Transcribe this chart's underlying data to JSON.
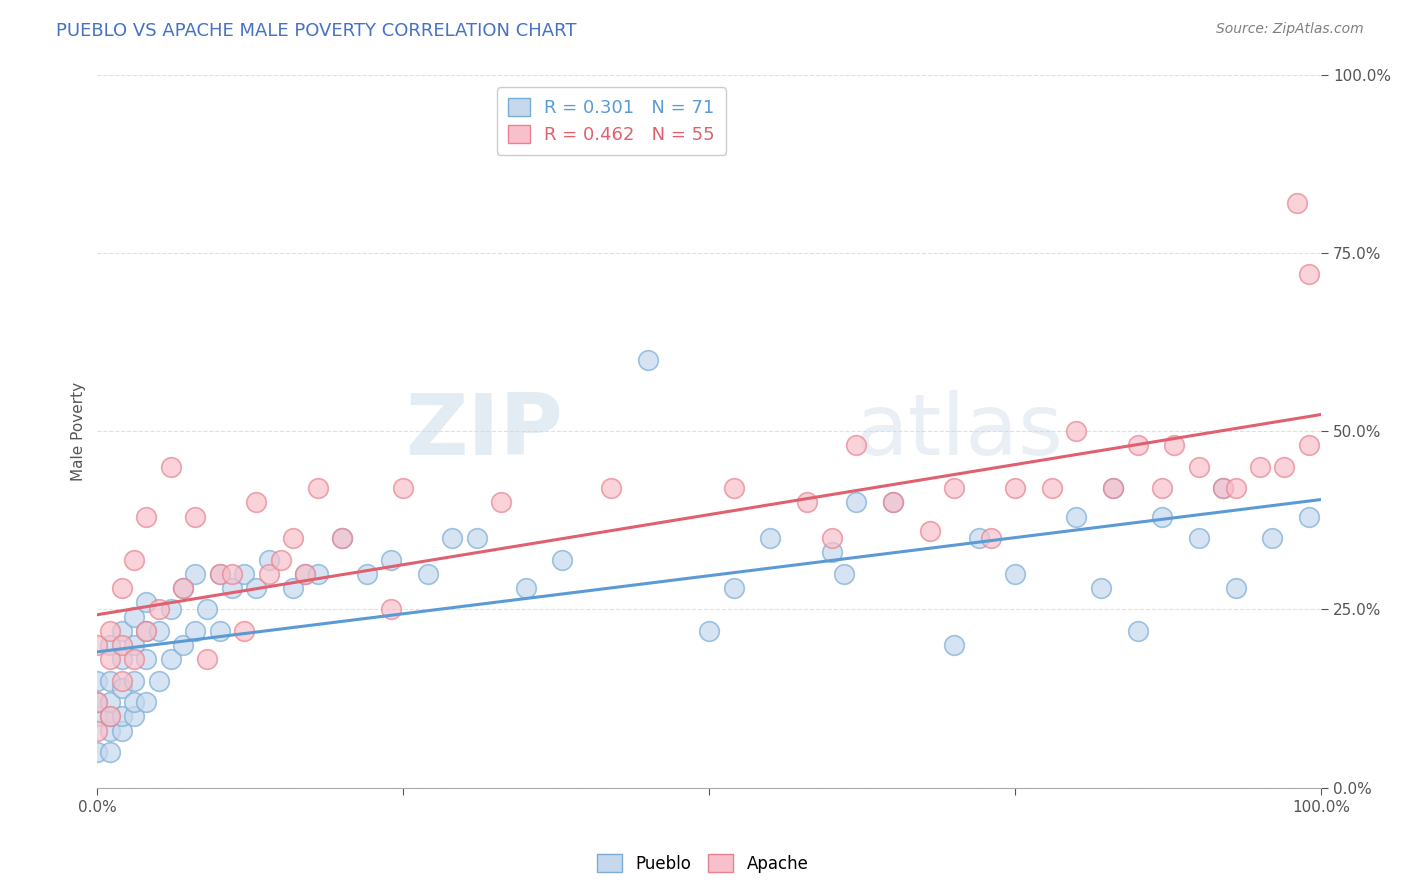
{
  "title": "PUEBLO VS APACHE MALE POVERTY CORRELATION CHART",
  "source": "Source: ZipAtlas.com",
  "ylabel": "Male Poverty",
  "pueblo_R": 0.301,
  "pueblo_N": 71,
  "apache_R": 0.462,
  "apache_N": 55,
  "pueblo_color": "#c5d8ee",
  "apache_color": "#f7c0cb",
  "pueblo_edge_color": "#7aadd4",
  "apache_edge_color": "#e8828e",
  "pueblo_line_color": "#5b9bd5",
  "apache_line_color": "#e06070",
  "watermark_color": "#d0dce8",
  "background_color": "#ffffff",
  "xlim": [
    0,
    1
  ],
  "ylim": [
    0,
    1
  ],
  "title_color": "#4472c4",
  "source_color": "#808080",
  "grid_color": "#dddddd",
  "legend_text_pueblo": "#5b9bd5",
  "legend_text_apache": "#e06070",
  "pueblo_x": [
    0.0,
    0.0,
    0.0,
    0.0,
    0.01,
    0.01,
    0.01,
    0.01,
    0.01,
    0.01,
    0.02,
    0.02,
    0.02,
    0.02,
    0.02,
    0.03,
    0.03,
    0.03,
    0.03,
    0.03,
    0.04,
    0.04,
    0.04,
    0.04,
    0.05,
    0.05,
    0.06,
    0.06,
    0.07,
    0.07,
    0.08,
    0.08,
    0.09,
    0.1,
    0.1,
    0.11,
    0.12,
    0.13,
    0.14,
    0.16,
    0.17,
    0.18,
    0.2,
    0.22,
    0.24,
    0.27,
    0.29,
    0.31,
    0.35,
    0.38,
    0.45,
    0.5,
    0.52,
    0.55,
    0.6,
    0.61,
    0.62,
    0.65,
    0.7,
    0.72,
    0.75,
    0.8,
    0.82,
    0.83,
    0.85,
    0.87,
    0.9,
    0.92,
    0.93,
    0.96,
    0.99
  ],
  "pueblo_y": [
    0.05,
    0.1,
    0.12,
    0.15,
    0.05,
    0.08,
    0.1,
    0.12,
    0.15,
    0.2,
    0.08,
    0.1,
    0.14,
    0.18,
    0.22,
    0.1,
    0.12,
    0.15,
    0.2,
    0.24,
    0.12,
    0.18,
    0.22,
    0.26,
    0.15,
    0.22,
    0.18,
    0.25,
    0.2,
    0.28,
    0.22,
    0.3,
    0.25,
    0.22,
    0.3,
    0.28,
    0.3,
    0.28,
    0.32,
    0.28,
    0.3,
    0.3,
    0.35,
    0.3,
    0.32,
    0.3,
    0.35,
    0.35,
    0.28,
    0.32,
    0.6,
    0.22,
    0.28,
    0.35,
    0.33,
    0.3,
    0.4,
    0.4,
    0.2,
    0.35,
    0.3,
    0.38,
    0.28,
    0.42,
    0.22,
    0.38,
    0.35,
    0.42,
    0.28,
    0.35,
    0.38
  ],
  "apache_x": [
    0.0,
    0.0,
    0.0,
    0.01,
    0.01,
    0.01,
    0.02,
    0.02,
    0.02,
    0.03,
    0.03,
    0.04,
    0.04,
    0.05,
    0.06,
    0.07,
    0.08,
    0.09,
    0.1,
    0.11,
    0.12,
    0.13,
    0.14,
    0.15,
    0.16,
    0.17,
    0.18,
    0.2,
    0.24,
    0.25,
    0.33,
    0.42,
    0.52,
    0.58,
    0.6,
    0.62,
    0.65,
    0.68,
    0.7,
    0.73,
    0.75,
    0.78,
    0.8,
    0.83,
    0.85,
    0.87,
    0.88,
    0.9,
    0.92,
    0.93,
    0.95,
    0.97,
    0.98,
    0.99,
    0.99
  ],
  "apache_y": [
    0.08,
    0.12,
    0.2,
    0.1,
    0.18,
    0.22,
    0.15,
    0.2,
    0.28,
    0.18,
    0.32,
    0.22,
    0.38,
    0.25,
    0.45,
    0.28,
    0.38,
    0.18,
    0.3,
    0.3,
    0.22,
    0.4,
    0.3,
    0.32,
    0.35,
    0.3,
    0.42,
    0.35,
    0.25,
    0.42,
    0.4,
    0.42,
    0.42,
    0.4,
    0.35,
    0.48,
    0.4,
    0.36,
    0.42,
    0.35,
    0.42,
    0.42,
    0.5,
    0.42,
    0.48,
    0.42,
    0.48,
    0.45,
    0.42,
    0.42,
    0.45,
    0.45,
    0.82,
    0.48,
    0.72
  ]
}
